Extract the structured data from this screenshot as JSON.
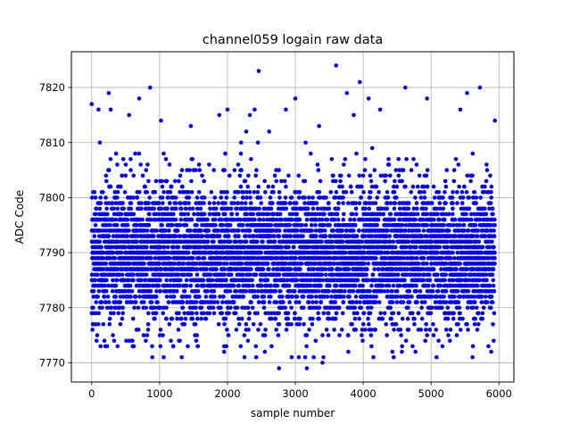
{
  "chart_data": {
    "type": "scatter",
    "title": "channel059 logain raw data",
    "xlabel": "sample number",
    "ylabel": "ADC Code",
    "xlim": [
      -300,
      6220
    ],
    "ylim": [
      7766.5,
      7826.5
    ],
    "x_ticks": [
      0,
      1000,
      2000,
      3000,
      4000,
      5000,
      6000
    ],
    "y_ticks": [
      7770,
      7780,
      7790,
      7800,
      7810,
      7820
    ],
    "grid": true,
    "legend": "none",
    "marker_color": "#0000ff",
    "n_samples": 5940,
    "center": 7789.5,
    "sigma": 6.3,
    "series": [
      {
        "points": [
          [
            0,
            7817
          ],
          [
            100,
            7816
          ],
          [
            120,
            7810
          ],
          [
            130,
            7773
          ],
          [
            200,
            7773
          ],
          [
            280,
            7816
          ],
          [
            250,
            7819
          ],
          [
            330,
            7774
          ],
          [
            550,
            7815
          ],
          [
            700,
            7818
          ],
          [
            660,
            7776
          ],
          [
            860,
            7820
          ],
          [
            1020,
            7814
          ],
          [
            1060,
            7771
          ],
          [
            1200,
            7773
          ],
          [
            1460,
            7813
          ],
          [
            1540,
            7774
          ],
          [
            1880,
            7815
          ],
          [
            1950,
            7772
          ],
          [
            2000,
            7816
          ],
          [
            2250,
            7771
          ],
          [
            2330,
            7815
          ],
          [
            2400,
            7816
          ],
          [
            2460,
            7823
          ],
          [
            2550,
            7772
          ],
          [
            2650,
            7773
          ],
          [
            2760,
            7769
          ],
          [
            2860,
            7816
          ],
          [
            3000,
            7818
          ],
          [
            3170,
            7769
          ],
          [
            3270,
            7771
          ],
          [
            3350,
            7813
          ],
          [
            3400,
            7770
          ],
          [
            3600,
            7824
          ],
          [
            3760,
            7819
          ],
          [
            3860,
            7815
          ],
          [
            3950,
            7821
          ],
          [
            4080,
            7818
          ],
          [
            4150,
            7771
          ],
          [
            4250,
            7816
          ],
          [
            4620,
            7820
          ],
          [
            4770,
            7772
          ],
          [
            4940,
            7818
          ],
          [
            5080,
            7771
          ],
          [
            5430,
            7816
          ],
          [
            5530,
            7819
          ],
          [
            5610,
            7771
          ],
          [
            5720,
            7820
          ],
          [
            5940,
            7814
          ]
        ]
      }
    ]
  }
}
